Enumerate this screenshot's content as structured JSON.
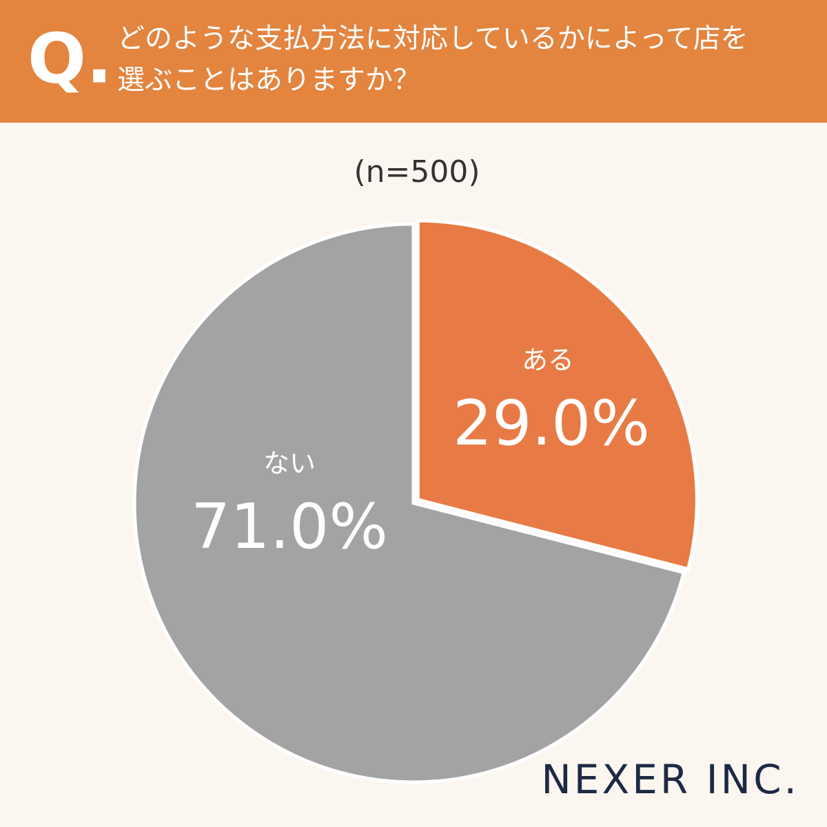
{
  "chart_data": {
    "type": "pie",
    "question_label": "Q.",
    "title": [
      "どのような支払方法に対応しているかによって店を",
      "選ぶことはありますか？"
    ],
    "subtitle": "(n=500)",
    "categories": [
      "ある",
      "ない"
    ],
    "values": [
      29.0,
      71.0
    ],
    "value_labels": [
      "29.0%",
      "71.0%"
    ],
    "colors": [
      "#e87b45",
      "#a3a3a3"
    ],
    "logo": "NEXER INC."
  }
}
